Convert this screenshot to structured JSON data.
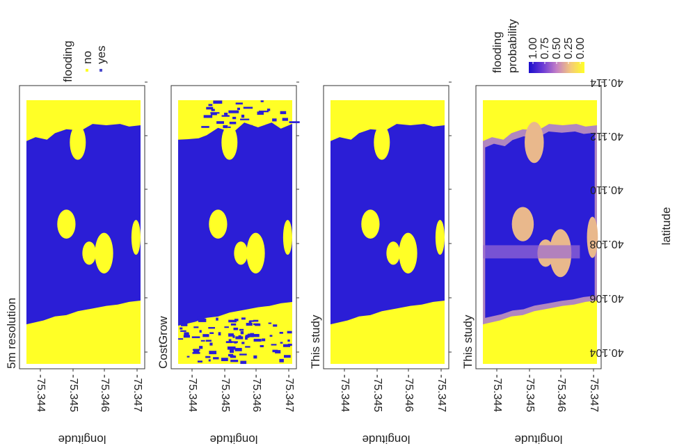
{
  "colors": {
    "flood_yes": "#2b1ed6",
    "flood_no": "#ffff26",
    "panel_border": "#333333"
  },
  "legends": {
    "categorical": {
      "title": "flooding",
      "items": [
        {
          "label": "no",
          "color": "#ffff26"
        },
        {
          "label": "yes",
          "color": "#4c4ccc"
        }
      ]
    },
    "continuous": {
      "title_line1": "flooding",
      "title_line2": "probability",
      "ticks": [
        "1.00",
        "0.75",
        "0.50",
        "0.25",
        "0.00"
      ],
      "gradient": [
        "#1a0dcc",
        "#6a3ad6",
        "#c47fc6",
        "#f4c87a",
        "#ffff26"
      ]
    }
  },
  "axes": {
    "xlabel": "latitude",
    "ylabel": "longitude",
    "lat_ticks": [
      "40.104",
      "40.106",
      "40.108",
      "40.110",
      "40.112",
      "40.114"
    ],
    "lon_ticks": [
      "-75.344",
      "-75.345",
      "-75.346",
      "-75.347"
    ]
  },
  "chart_data": [
    {
      "type": "heatmap",
      "title": "5m resolution",
      "variable": "flooding",
      "values": [
        "no",
        "yes"
      ],
      "lat_range": [
        40.1037,
        40.1146
      ],
      "lon_range": [
        -75.3442,
        -75.3471
      ]
    },
    {
      "type": "heatmap",
      "title": "CostGrow",
      "variable": "flooding",
      "values": [
        "no",
        "yes"
      ],
      "lat_range": [
        40.1037,
        40.1146
      ],
      "lon_range": [
        -75.3442,
        -75.3471
      ]
    },
    {
      "type": "heatmap",
      "title": "This study",
      "variable": "flooding",
      "values": [
        "no",
        "yes"
      ],
      "lat_range": [
        40.1037,
        40.1146
      ],
      "lon_range": [
        -75.3442,
        -75.3471
      ]
    },
    {
      "type": "heatmap",
      "title": "This study",
      "variable": "flooding probability",
      "scale": [
        0,
        1
      ],
      "lat_range": [
        40.1037,
        40.1146
      ],
      "lon_range": [
        -75.3442,
        -75.3471
      ]
    }
  ]
}
